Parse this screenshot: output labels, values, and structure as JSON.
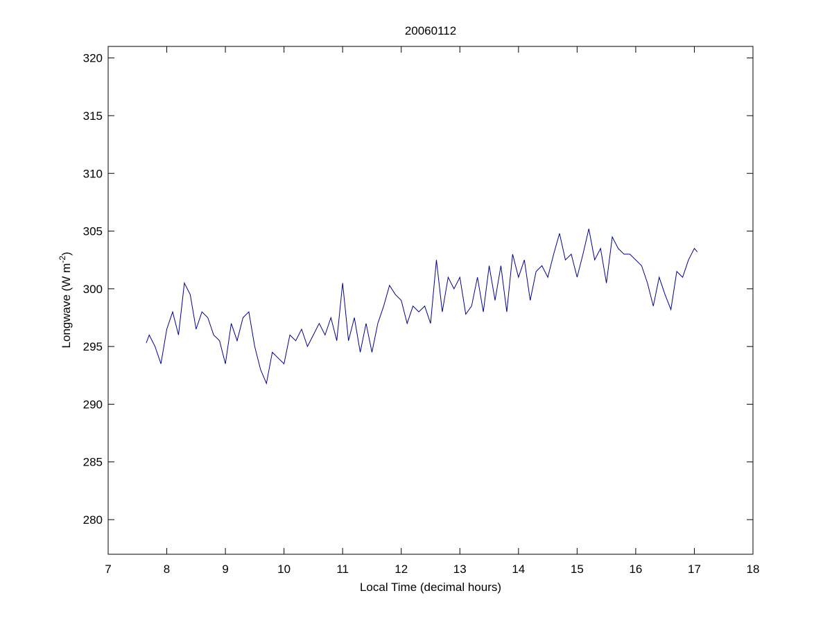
{
  "chart_data": {
    "type": "line",
    "title": "20060112",
    "xlabel": "Local Time (decimal hours)",
    "ylabel": [
      "Longwave (W m",
      "-2",
      ")"
    ],
    "x": [
      7.65,
      7.7,
      7.8,
      7.9,
      8.0,
      8.1,
      8.2,
      8.3,
      8.4,
      8.5,
      8.6,
      8.7,
      8.8,
      8.9,
      9.0,
      9.1,
      9.2,
      9.3,
      9.4,
      9.5,
      9.6,
      9.7,
      9.8,
      9.9,
      10.0,
      10.1,
      10.2,
      10.3,
      10.4,
      10.5,
      10.6,
      10.7,
      10.8,
      10.9,
      11.0,
      11.1,
      11.2,
      11.3,
      11.4,
      11.5,
      11.6,
      11.7,
      11.8,
      11.9,
      12.0,
      12.1,
      12.2,
      12.3,
      12.4,
      12.5,
      12.6,
      12.7,
      12.8,
      12.9,
      13.0,
      13.1,
      13.2,
      13.3,
      13.4,
      13.5,
      13.6,
      13.7,
      13.8,
      13.9,
      14.0,
      14.1,
      14.2,
      14.3,
      14.4,
      14.5,
      14.6,
      14.7,
      14.8,
      14.9,
      15.0,
      15.1,
      15.2,
      15.3,
      15.4,
      15.5,
      15.6,
      15.7,
      15.8,
      15.9,
      16.0,
      16.1,
      16.2,
      16.3,
      16.4,
      16.5,
      16.6,
      16.7,
      16.8,
      16.9,
      17.0,
      17.05
    ],
    "series": [
      {
        "name": "Longwave",
        "color": "#00008b",
        "values": [
          295.3,
          296,
          295,
          293.5,
          296.5,
          298,
          296,
          300.5,
          299.5,
          296.5,
          298,
          297.5,
          296,
          295.5,
          293.5,
          297,
          295.5,
          297.5,
          298,
          295,
          293,
          291.8,
          294.5,
          294,
          293.5,
          296,
          295.5,
          296.5,
          295,
          296,
          297,
          296,
          297.5,
          295.5,
          300.5,
          295.5,
          297.5,
          294.5,
          297,
          294.5,
          297,
          298.5,
          300.3,
          299.5,
          299,
          297,
          298.5,
          298,
          298.5,
          297,
          302.5,
          298,
          301,
          300,
          301,
          297.8,
          298.5,
          301,
          298,
          302,
          299,
          302,
          298,
          303,
          301,
          302.5,
          299,
          301.5,
          302,
          301,
          303,
          304.8,
          302.5,
          303,
          301,
          303,
          305.2,
          302.5,
          303.5,
          300.5,
          304.5,
          303.5,
          303,
          303,
          302.5,
          302,
          300.5,
          298.5,
          301,
          299.5,
          298.2,
          301.5,
          301,
          302.5,
          303.5,
          303.2
        ]
      }
    ],
    "xlim": [
      7,
      18
    ],
    "xticks": [
      7,
      8,
      9,
      10,
      11,
      12,
      13,
      14,
      15,
      16,
      17,
      18
    ],
    "ylim": [
      277,
      321
    ],
    "yticks": [
      280,
      285,
      290,
      295,
      300,
      305,
      310,
      315,
      320
    ],
    "grid": false
  }
}
